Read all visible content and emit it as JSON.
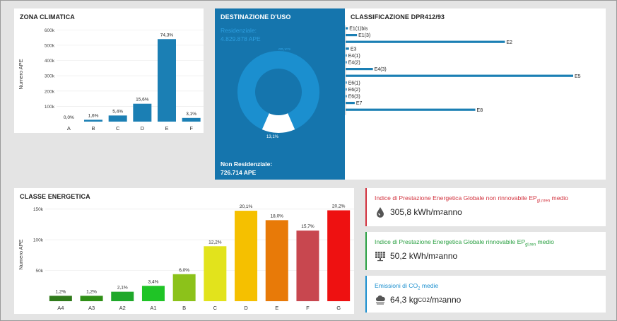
{
  "zona": {
    "title": "ZONA CLIMATICA",
    "chart_data": {
      "type": "bar",
      "title": "ZONA CLIMATICA",
      "ylabel": "Numero APE",
      "categories": [
        "A",
        "B",
        "C",
        "D",
        "E",
        "F"
      ],
      "values": [
        0,
        12000,
        40000,
        117000,
        540000,
        24000
      ],
      "labels": [
        "0,0%",
        "1,6%",
        "5,4%",
        "15,6%",
        "74,3%",
        "3,1%"
      ],
      "yticks": [
        100000,
        200000,
        300000,
        400000,
        500000,
        600000
      ],
      "ytick_labels": [
        "100k",
        "200k",
        "300k",
        "400k",
        "500k",
        "600k"
      ],
      "ylim": [
        0,
        620000
      ],
      "color": "#1b7fb4"
    }
  },
  "destinazione": {
    "title": "DESTINAZIONE D'USO",
    "res_label": "Residenziale:",
    "res_value": "4.829.878 APE",
    "nonres_label": "Non Residenziale:",
    "nonres_value": "726.714 APE",
    "chart_data": {
      "type": "pie",
      "slices": [
        {
          "label": "86,9%",
          "value": 86.9,
          "color": "#1b8fcf"
        },
        {
          "label": "13,1%",
          "value": 13.1,
          "color": "#ffffff"
        }
      ]
    }
  },
  "classificazione": {
    "title": "CLASSIFICAZIONE DPR412/93",
    "chart_data": {
      "type": "bar",
      "orientation": "horizontal",
      "title": "CLASSIFICAZIONE DPR412/93",
      "categories": [
        "E1(1)bis",
        "E1(3)",
        "E2",
        "E3",
        "E4(1)",
        "E4(2)",
        "E4(3)",
        "E5",
        "E6(1)",
        "E6(2)",
        "E6(3)",
        "E7",
        "E8"
      ],
      "values": [
        1,
        5,
        70,
        1.5,
        0.5,
        0.5,
        12,
        100,
        0.5,
        0.5,
        0.5,
        4,
        57
      ],
      "color": "#1b7fb4"
    }
  },
  "classe": {
    "title": "CLASSE ENERGETICA",
    "chart_data": {
      "type": "bar",
      "title": "CLASSE ENERGETICA",
      "ylabel": "Numero APE",
      "categories": [
        "A4",
        "A3",
        "A2",
        "A1",
        "B",
        "C",
        "D",
        "E",
        "F",
        "G"
      ],
      "values": [
        8800,
        8800,
        15400,
        25000,
        44000,
        89500,
        147300,
        132000,
        115000,
        148000
      ],
      "labels": [
        "1,2%",
        "1,2%",
        "2,1%",
        "3,4%",
        "6,0%",
        "12,2%",
        "20,1%",
        "18,0%",
        "15,7%",
        "20,2%"
      ],
      "colors": [
        "#2f7a1a",
        "#2f8f16",
        "#1fa82a",
        "#1fc426",
        "#8cc21a",
        "#e2e31c",
        "#f5c000",
        "#e87a08",
        "#c8474f",
        "#ee1111"
      ],
      "yticks": [
        50000,
        100000,
        150000
      ],
      "ytick_labels": [
        "50k",
        "100k",
        "150k"
      ],
      "ylim": [
        0,
        152000
      ]
    }
  },
  "kpi": [
    {
      "title_main": "Indice di Prestazione Energetica Globale non rinnovabile EP",
      "title_sub": "gl,nren",
      "title_tail": " medio",
      "value": "305,8 kWh/m",
      "exp": "2",
      "tail": " anno",
      "color": "#d2323e",
      "icon": "drop-icon"
    },
    {
      "title_main": "Indice di Prestazione Energetica Globale rinnovabile EP",
      "title_sub": "gl,ren",
      "title_tail": " medio",
      "value": "50,2 kWh/m",
      "exp": "2",
      "tail": " anno",
      "color": "#2aa042",
      "icon": "solar-panel-icon"
    },
    {
      "title_main": "Emissioni di CO",
      "title_sub": "2",
      "title_tail": " medie",
      "value": "64,3 kg",
      "value_sub": "CO2",
      "value_mid": "/m",
      "exp": "2",
      "tail": " anno",
      "color": "#1b8fcf",
      "icon": "cloud-icon"
    }
  ]
}
